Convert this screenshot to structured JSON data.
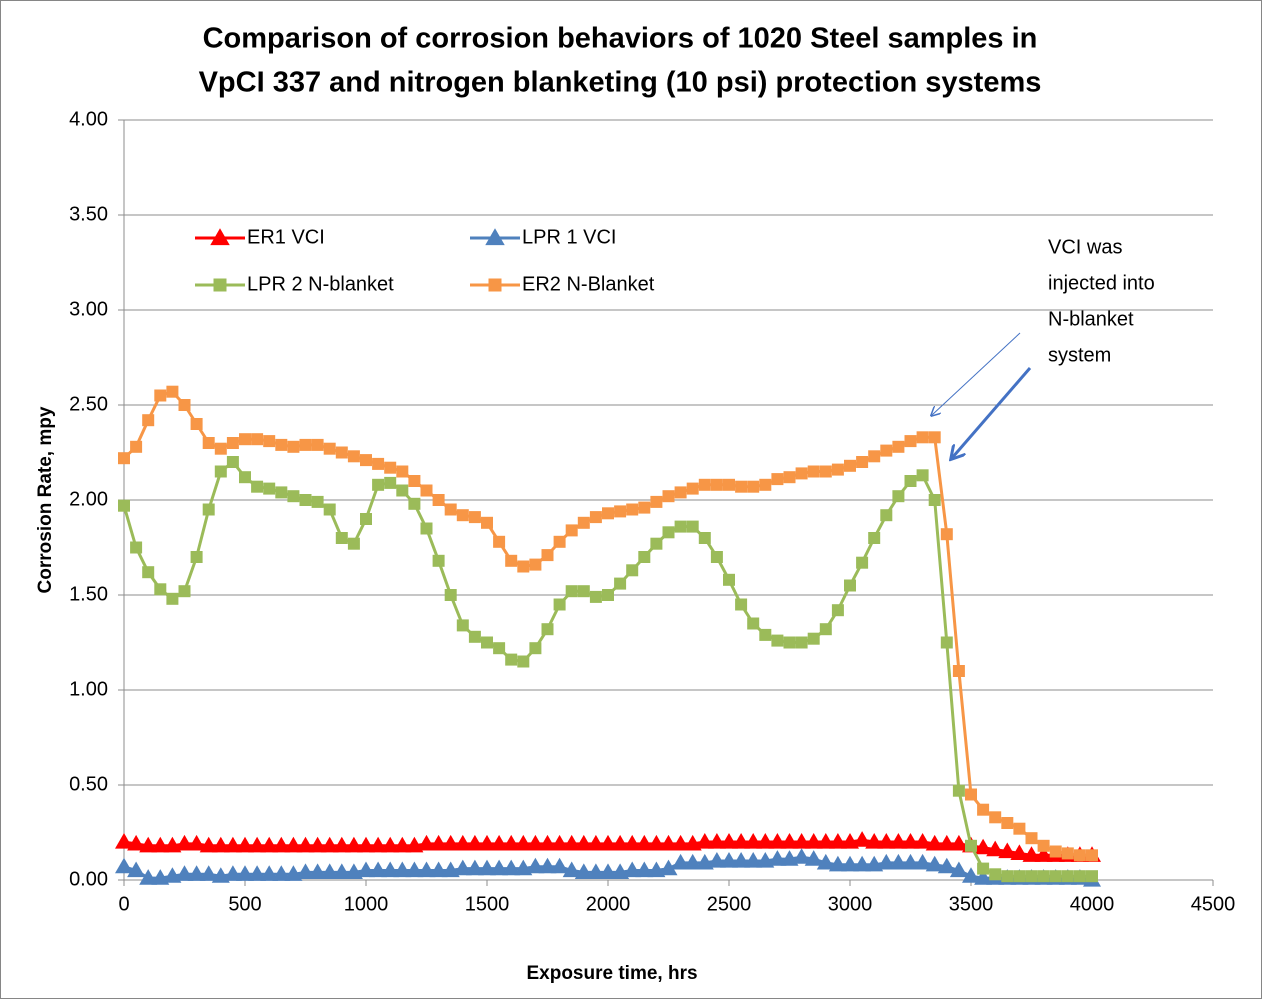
{
  "chart_data": {
    "type": "line",
    "title": [
      "Comparison of corrosion behaviors of 1020 Steel samples in",
      "VpCI 337  and nitrogen blanketing (10 psi)  protection systems"
    ],
    "xlabel": "Exposure time, hrs",
    "ylabel": "Corrosion Rate, mpy",
    "annotation": [
      "VCI was",
      "injected into",
      "N-blanket",
      "system"
    ],
    "xlim": [
      0,
      4500
    ],
    "xticks": [
      0,
      500,
      1000,
      1500,
      2000,
      2500,
      3000,
      3500,
      4000,
      4500
    ],
    "ylim": [
      0,
      4
    ],
    "yticks": [
      {
        "value": 0,
        "label": "0.00"
      },
      {
        "value": 0.5,
        "label": "0.50"
      },
      {
        "value": 1,
        "label": "1.00"
      },
      {
        "value": 1.5,
        "label": "1.50"
      },
      {
        "value": 2,
        "label": "2.00"
      },
      {
        "value": 2.5,
        "label": "2.50"
      },
      {
        "value": 3,
        "label": "3.00"
      },
      {
        "value": 3.5,
        "label": "3.50"
      },
      {
        "value": 4,
        "label": "4.00"
      }
    ],
    "grid": true,
    "x": [
      0,
      50,
      100,
      150,
      200,
      250,
      300,
      350,
      400,
      450,
      500,
      550,
      600,
      650,
      700,
      750,
      800,
      850,
      900,
      950,
      1000,
      1050,
      1100,
      1150,
      1200,
      1250,
      1300,
      1350,
      1400,
      1450,
      1500,
      1550,
      1600,
      1650,
      1700,
      1750,
      1800,
      1850,
      1900,
      1950,
      2000,
      2050,
      2100,
      2150,
      2200,
      2250,
      2300,
      2350,
      2400,
      2450,
      2500,
      2550,
      2600,
      2650,
      2700,
      2750,
      2800,
      2850,
      2900,
      2950,
      3000,
      3050,
      3100,
      3150,
      3200,
      3250,
      3300,
      3350,
      3400,
      3450,
      3500,
      3550,
      3600,
      3650,
      3700,
      3750,
      3800,
      3850,
      3900,
      3950,
      4000
    ],
    "series": [
      {
        "name": "ER1 VCI",
        "color": "#ff0000",
        "marker": "triangle",
        "values": [
          0.2,
          0.19,
          0.18,
          0.18,
          0.18,
          0.19,
          0.19,
          0.18,
          0.18,
          0.18,
          0.18,
          0.18,
          0.18,
          0.18,
          0.18,
          0.18,
          0.18,
          0.18,
          0.18,
          0.18,
          0.18,
          0.18,
          0.18,
          0.18,
          0.18,
          0.19,
          0.19,
          0.19,
          0.19,
          0.19,
          0.19,
          0.19,
          0.19,
          0.19,
          0.19,
          0.19,
          0.19,
          0.19,
          0.19,
          0.19,
          0.19,
          0.19,
          0.19,
          0.19,
          0.19,
          0.19,
          0.19,
          0.19,
          0.2,
          0.2,
          0.2,
          0.2,
          0.2,
          0.2,
          0.2,
          0.2,
          0.2,
          0.2,
          0.2,
          0.2,
          0.2,
          0.21,
          0.2,
          0.2,
          0.2,
          0.2,
          0.2,
          0.19,
          0.19,
          0.19,
          0.18,
          0.17,
          0.16,
          0.15,
          0.14,
          0.13,
          0.13,
          0.13,
          0.13,
          0.13,
          0.13
        ]
      },
      {
        "name": "LPR 1 VCI",
        "color": "#4f81bd",
        "marker": "triangle",
        "values": [
          0.07,
          0.05,
          0.01,
          0.01,
          0.02,
          0.03,
          0.03,
          0.03,
          0.02,
          0.03,
          0.03,
          0.03,
          0.03,
          0.03,
          0.03,
          0.04,
          0.04,
          0.04,
          0.04,
          0.04,
          0.05,
          0.05,
          0.05,
          0.05,
          0.05,
          0.05,
          0.05,
          0.05,
          0.06,
          0.06,
          0.06,
          0.06,
          0.06,
          0.06,
          0.07,
          0.07,
          0.07,
          0.05,
          0.04,
          0.04,
          0.04,
          0.04,
          0.05,
          0.05,
          0.05,
          0.06,
          0.09,
          0.09,
          0.09,
          0.1,
          0.1,
          0.1,
          0.1,
          0.1,
          0.11,
          0.11,
          0.12,
          0.11,
          0.09,
          0.08,
          0.08,
          0.08,
          0.08,
          0.09,
          0.09,
          0.09,
          0.09,
          0.08,
          0.07,
          0.05,
          0.02,
          0.01,
          0.01,
          0.01,
          0.01,
          0.01,
          0.01,
          0.01,
          0.01,
          0.01,
          0.0
        ]
      },
      {
        "name": "LPR 2 N-blanket",
        "color": "#9bbb59",
        "marker": "square",
        "values": [
          1.97,
          1.75,
          1.62,
          1.53,
          1.48,
          1.52,
          1.7,
          1.95,
          2.15,
          2.2,
          2.12,
          2.07,
          2.06,
          2.04,
          2.02,
          2.0,
          1.99,
          1.95,
          1.8,
          1.77,
          1.9,
          2.08,
          2.09,
          2.05,
          1.98,
          1.85,
          1.68,
          1.5,
          1.34,
          1.28,
          1.25,
          1.22,
          1.16,
          1.15,
          1.22,
          1.32,
          1.45,
          1.52,
          1.52,
          1.49,
          1.5,
          1.56,
          1.63,
          1.7,
          1.77,
          1.83,
          1.86,
          1.86,
          1.8,
          1.7,
          1.58,
          1.45,
          1.35,
          1.29,
          1.26,
          1.25,
          1.25,
          1.27,
          1.32,
          1.42,
          1.55,
          1.67,
          1.8,
          1.92,
          2.02,
          2.1,
          2.13,
          2.0,
          1.25,
          0.47,
          0.18,
          0.06,
          0.03,
          0.02,
          0.02,
          0.02,
          0.02,
          0.02,
          0.02,
          0.02,
          0.02
        ]
      },
      {
        "name": "ER2  N-Blanket",
        "color": "#f79646",
        "marker": "square",
        "values": [
          2.22,
          2.28,
          2.42,
          2.55,
          2.57,
          2.5,
          2.4,
          2.3,
          2.27,
          2.3,
          2.32,
          2.32,
          2.31,
          2.29,
          2.28,
          2.29,
          2.29,
          2.27,
          2.25,
          2.23,
          2.21,
          2.19,
          2.17,
          2.15,
          2.1,
          2.05,
          2.0,
          1.95,
          1.92,
          1.91,
          1.88,
          1.78,
          1.68,
          1.65,
          1.66,
          1.71,
          1.78,
          1.84,
          1.88,
          1.91,
          1.93,
          1.94,
          1.95,
          1.96,
          1.99,
          2.02,
          2.04,
          2.06,
          2.08,
          2.08,
          2.08,
          2.07,
          2.07,
          2.08,
          2.11,
          2.12,
          2.14,
          2.15,
          2.15,
          2.16,
          2.18,
          2.2,
          2.23,
          2.26,
          2.28,
          2.31,
          2.33,
          2.33,
          1.82,
          1.1,
          0.45,
          0.37,
          0.33,
          0.3,
          0.27,
          0.22,
          0.18,
          0.15,
          0.14,
          0.13,
          0.13
        ]
      }
    ]
  }
}
